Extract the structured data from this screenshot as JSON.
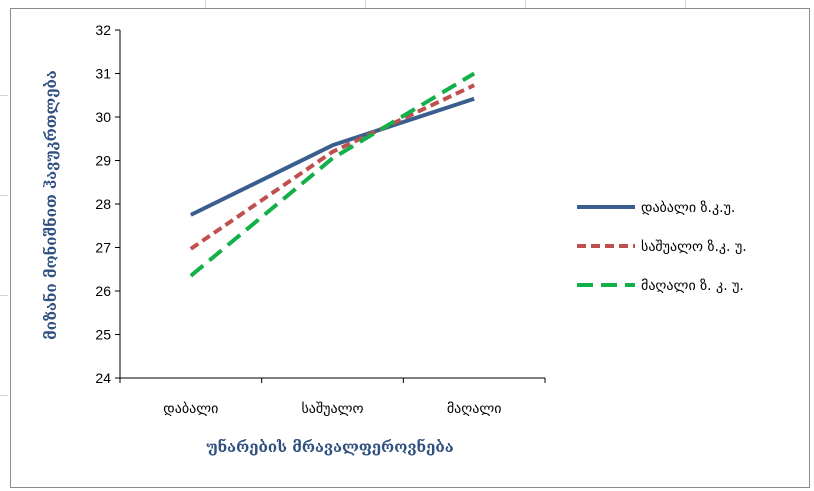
{
  "colors": {
    "series_1": "#3a5f8f",
    "series_2": "#c0504d",
    "series_3": "#13b04a",
    "axis_title": "#2f4f7f",
    "axis": "#000000"
  },
  "chart_data": {
    "type": "line",
    "title": "",
    "xlabel": "უნარების მრავალფეროვნება",
    "ylabel": "მიზანი მონიშნით ჰავუკრთლება",
    "categories": [
      "დაბალი",
      "საშუალო",
      "მაღალი"
    ],
    "ylim": [
      24,
      32
    ],
    "yticks": [
      24,
      25,
      26,
      27,
      28,
      29,
      30,
      31,
      32
    ],
    "grid": false,
    "legend_position": "right",
    "series": [
      {
        "name": "დაბალი ზ.კ.უ.",
        "values": [
          27.75,
          29.35,
          30.42
        ],
        "style": "solid",
        "color": "#3a5f8f"
      },
      {
        "name": "საშუალო ზ.კ. უ.",
        "values": [
          26.97,
          29.2,
          30.73
        ],
        "style": "dashed-short",
        "color": "#c0504d"
      },
      {
        "name": "მაღალი ზ. კ. უ.",
        "values": [
          26.35,
          29.05,
          31.0
        ],
        "style": "dashed-long",
        "color": "#13b04a"
      }
    ]
  }
}
